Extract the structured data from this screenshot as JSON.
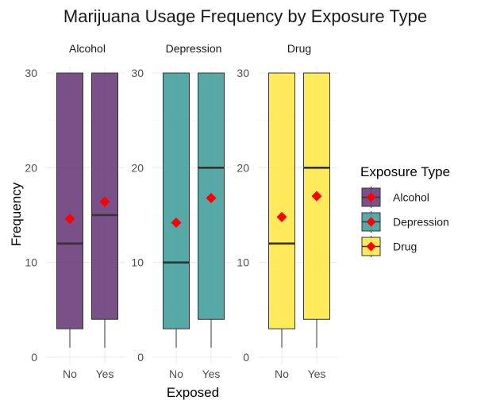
{
  "chart_data": {
    "type": "boxplot",
    "title": "Marijuana Usage Frequency by Exposure Type",
    "xlabel": "Exposed",
    "ylabel": "Frequency",
    "ylim": [
      0,
      30
    ],
    "yticks": [
      0,
      10,
      20,
      30
    ],
    "categories": [
      "No",
      "Yes"
    ],
    "grid": true,
    "legend": {
      "title": "Exposure Type",
      "position": "right",
      "entries": [
        "Alcohol",
        "Depression",
        "Drug"
      ]
    },
    "mean_marker_color": "#ff0000",
    "panels": [
      {
        "name": "Alcohol",
        "color": "#6a3d7a",
        "boxes": [
          {
            "x": "No",
            "min": 1,
            "q1": 3,
            "median": 12,
            "q3": 30,
            "max": 30,
            "mean": 14.6
          },
          {
            "x": "Yes",
            "min": 1,
            "q1": 4,
            "median": 15,
            "q3": 30,
            "max": 30,
            "mean": 16.4
          }
        ]
      },
      {
        "name": "Depression",
        "color": "#45a09e",
        "boxes": [
          {
            "x": "No",
            "min": 1,
            "q1": 3,
            "median": 10,
            "q3": 30,
            "max": 30,
            "mean": 14.2
          },
          {
            "x": "Yes",
            "min": 1,
            "q1": 4,
            "median": 20,
            "q3": 30,
            "max": 30,
            "mean": 16.8
          }
        ]
      },
      {
        "name": "Drug",
        "color": "#ffe84a",
        "boxes": [
          {
            "x": "No",
            "min": 1,
            "q1": 3,
            "median": 12,
            "q3": 30,
            "max": 30,
            "mean": 14.8
          },
          {
            "x": "Yes",
            "min": 1,
            "q1": 4,
            "median": 20,
            "q3": 30,
            "max": 30,
            "mean": 17.0
          }
        ]
      }
    ]
  }
}
